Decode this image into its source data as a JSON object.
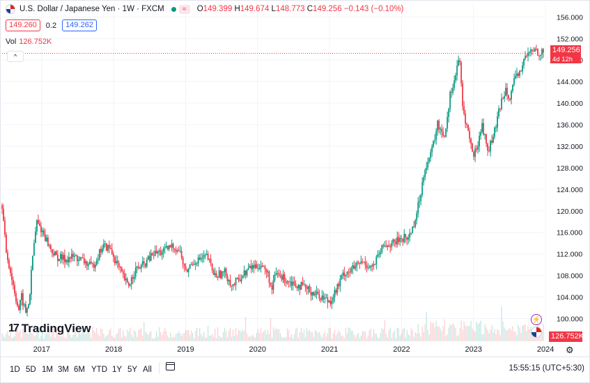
{
  "header": {
    "symbol_title": "U.S. Dollar / Japanese Yen · 1W · FXCM",
    "ohlc": [
      {
        "label": "O",
        "value": "149.399"
      },
      {
        "label": "H",
        "value": "149.674"
      },
      {
        "label": "L",
        "value": "148.773"
      },
      {
        "label": "C",
        "value": "149.256"
      }
    ],
    "change": "−0.143 (−0.10%)",
    "bid": "149.260",
    "spread": "0.2",
    "ask": "149.262",
    "volume_label": "Vol",
    "volume_value": "126.752K",
    "collapse_glyph": "^"
  },
  "price_axis": {
    "current_price": "149.256",
    "countdown": "4d 12h",
    "volume_badge": "126.752K"
  },
  "logo": {
    "mark": "17",
    "text": "TradingView"
  },
  "icons": {
    "flag": "us-flag-icon",
    "bolt": "lightning-icon",
    "gear": "gear-icon",
    "calendar": "calendar-icon"
  },
  "colors": {
    "up": "#089981",
    "down": "#f23645",
    "grid": "#f0f3fa",
    "text": "#131722",
    "accent": "#2962ff"
  },
  "bottom_bar": {
    "timeframes": [
      "1D",
      "5D",
      "1M",
      "3M",
      "6M",
      "YTD",
      "1Y",
      "5Y",
      "All"
    ],
    "clock": "15:55:15 (UTC+5:30)"
  },
  "chart_data": {
    "type": "candlestick",
    "interval": "1W",
    "y_ticks": [
      100,
      104,
      108,
      112,
      116,
      120,
      124,
      128,
      132,
      136,
      140,
      144,
      148,
      152,
      156
    ],
    "x_ticks": [
      "2017",
      "2018",
      "2019",
      "2020",
      "2021",
      "2022",
      "2023",
      "2024"
    ],
    "ylim": [
      95.8,
      158.5
    ],
    "xlim": [
      2016.45,
      2023.97
    ],
    "grid": true,
    "close_path": [
      [
        2016.45,
        121.0
      ],
      [
        2016.5,
        113.0
      ],
      [
        2016.6,
        106.5
      ],
      [
        2016.68,
        101.5
      ],
      [
        2016.72,
        104.0
      ],
      [
        2016.78,
        101.0
      ],
      [
        2016.83,
        103.5
      ],
      [
        2016.87,
        111.0
      ],
      [
        2016.93,
        118.0
      ],
      [
        2017.02,
        116.0
      ],
      [
        2017.12,
        113.0
      ],
      [
        2017.2,
        111.5
      ],
      [
        2017.32,
        111.0
      ],
      [
        2017.45,
        111.5
      ],
      [
        2017.6,
        110.5
      ],
      [
        2017.7,
        109.5
      ],
      [
        2017.85,
        113.5
      ],
      [
        2017.95,
        113.0
      ],
      [
        2018.1,
        108.5
      ],
      [
        2018.2,
        106.0
      ],
      [
        2018.3,
        109.0
      ],
      [
        2018.42,
        110.0
      ],
      [
        2018.55,
        112.0
      ],
      [
        2018.7,
        112.5
      ],
      [
        2018.82,
        113.5
      ],
      [
        2018.92,
        112.5
      ],
      [
        2019.0,
        108.5
      ],
      [
        2019.1,
        110.5
      ],
      [
        2019.3,
        111.5
      ],
      [
        2019.4,
        108.0
      ],
      [
        2019.55,
        108.5
      ],
      [
        2019.65,
        106.0
      ],
      [
        2019.75,
        107.5
      ],
      [
        2019.9,
        109.5
      ],
      [
        2020.05,
        110.0
      ],
      [
        2020.15,
        108.0
      ],
      [
        2020.2,
        105.0
      ],
      [
        2020.25,
        108.5
      ],
      [
        2020.35,
        107.5
      ],
      [
        2020.45,
        107.0
      ],
      [
        2020.6,
        106.0
      ],
      [
        2020.75,
        105.0
      ],
      [
        2020.9,
        104.0
      ],
      [
        2021.0,
        103.2
      ],
      [
        2021.1,
        105.5
      ],
      [
        2021.2,
        108.5
      ],
      [
        2021.3,
        109.0
      ],
      [
        2021.45,
        110.5
      ],
      [
        2021.6,
        109.5
      ],
      [
        2021.75,
        113.5
      ],
      [
        2021.9,
        114.0
      ],
      [
        2022.0,
        115.0
      ],
      [
        2022.1,
        115.0
      ],
      [
        2022.18,
        118.0
      ],
      [
        2022.25,
        122.0
      ],
      [
        2022.32,
        128.0
      ],
      [
        2022.4,
        130.0
      ],
      [
        2022.5,
        136.0
      ],
      [
        2022.6,
        134.0
      ],
      [
        2022.68,
        142.0
      ],
      [
        2022.75,
        145.0
      ],
      [
        2022.8,
        149.0
      ],
      [
        2022.85,
        139.0
      ],
      [
        2022.92,
        135.0
      ],
      [
        2023.0,
        130.0
      ],
      [
        2023.05,
        132.0
      ],
      [
        2023.12,
        136.0
      ],
      [
        2023.2,
        131.0
      ],
      [
        2023.3,
        135.0
      ],
      [
        2023.38,
        140.0
      ],
      [
        2023.45,
        143.0
      ],
      [
        2023.5,
        141.0
      ],
      [
        2023.55,
        143.5
      ],
      [
        2023.65,
        146.0
      ],
      [
        2023.72,
        148.5
      ],
      [
        2023.8,
        149.5
      ],
      [
        2023.85,
        150.0
      ],
      [
        2023.9,
        149.5
      ],
      [
        2023.97,
        149.256
      ]
    ]
  }
}
